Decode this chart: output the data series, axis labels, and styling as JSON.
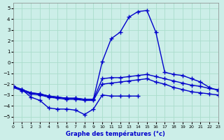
{
  "title": "Graphe des températures (°c)",
  "background_color": "#cceee8",
  "grid_color": "#aaddcc",
  "line_color": "#0000cc",
  "xlim": [
    0,
    23
  ],
  "ylim": [
    -5.5,
    5.5
  ],
  "xticks": [
    0,
    1,
    2,
    3,
    4,
    5,
    6,
    7,
    8,
    9,
    10,
    11,
    12,
    13,
    14,
    15,
    16,
    17,
    18,
    19,
    20,
    21,
    22,
    23
  ],
  "yticks": [
    -5,
    -4,
    -3,
    -2,
    -1,
    0,
    1,
    2,
    3,
    4,
    5
  ],
  "line_peak_x": [
    0,
    1,
    2,
    3,
    4,
    5,
    6,
    7,
    8,
    9,
    10,
    11,
    12,
    13,
    14,
    15,
    16,
    17,
    18,
    19,
    20,
    21,
    22,
    23
  ],
  "line_peak_y": [
    -2.2,
    -2.5,
    -2.8,
    -2.9,
    -3.1,
    -3.2,
    -3.3,
    -3.3,
    -3.4,
    -3.4,
    0.1,
    2.2,
    2.8,
    4.2,
    4.7,
    4.8,
    2.8,
    -0.9,
    -1.1,
    -1.2,
    -1.5,
    -1.8,
    -2.3,
    -2.6
  ],
  "line_upper_x": [
    0,
    1,
    2,
    3,
    4,
    5,
    6,
    7,
    8,
    9,
    10,
    11,
    12,
    13,
    14,
    15,
    16,
    17,
    18,
    19,
    20,
    21,
    22,
    23
  ],
  "line_upper_y": [
    -2.2,
    -2.5,
    -2.8,
    -2.9,
    -3.1,
    -3.2,
    -3.3,
    -3.3,
    -3.4,
    -3.4,
    -1.5,
    -1.4,
    -1.4,
    -1.3,
    -1.2,
    -1.1,
    -1.3,
    -1.5,
    -1.7,
    -1.9,
    -2.1,
    -2.2,
    -2.4,
    -2.5
  ],
  "line_mid_x": [
    0,
    1,
    2,
    3,
    4,
    5,
    6,
    7,
    8,
    9,
    10,
    11,
    12,
    13,
    14,
    15,
    16,
    17,
    18,
    19,
    20,
    21,
    22,
    23
  ],
  "line_mid_y": [
    -2.3,
    -2.6,
    -2.9,
    -3.0,
    -3.2,
    -3.3,
    -3.4,
    -3.4,
    -3.5,
    -3.5,
    -2.0,
    -1.9,
    -1.8,
    -1.7,
    -1.6,
    -1.5,
    -1.8,
    -2.0,
    -2.3,
    -2.5,
    -2.7,
    -2.8,
    -2.9,
    -3.0
  ],
  "line_low_x": [
    0,
    1,
    2,
    3,
    4,
    5,
    6,
    7,
    8,
    9,
    10,
    11,
    12,
    13,
    14
  ],
  "line_low_y": [
    -2.2,
    -2.5,
    -3.2,
    -3.5,
    -4.2,
    -4.3,
    -4.3,
    -4.4,
    -4.8,
    -4.3,
    -3.0,
    -3.1,
    -3.1,
    -3.1,
    -3.1
  ]
}
